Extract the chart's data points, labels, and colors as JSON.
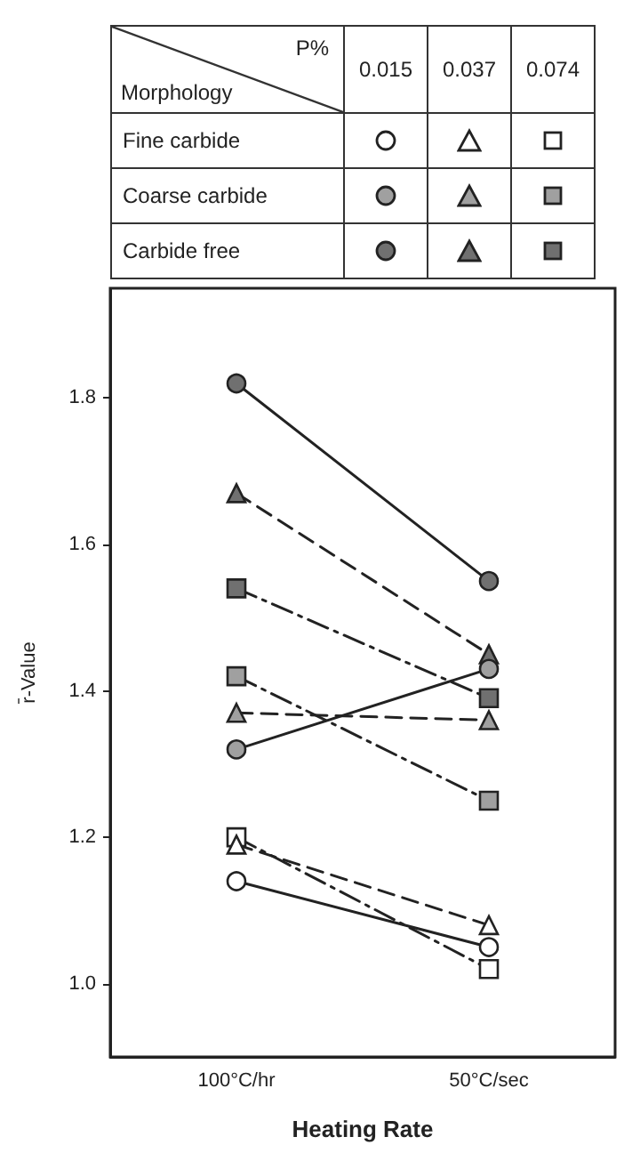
{
  "chart_data": {
    "type": "line",
    "xlabel": "Heating Rate",
    "ylabel": "r̄-Value",
    "categories": [
      "100°C/hr",
      "50°C/sec"
    ],
    "ylim": [
      0.9,
      1.95
    ],
    "yticks": [
      {
        "value": 1.0,
        "label": "1.0"
      },
      {
        "value": 1.2,
        "label": "1.2"
      },
      {
        "value": 1.4,
        "label": "1.4"
      },
      {
        "value": 1.6,
        "label": "1.6"
      },
      {
        "value": 1.8,
        "label": "1.8"
      }
    ],
    "annotations": [
      "P%",
      "Morphology",
      "0.015",
      "0.037",
      "0.074",
      "Fine carbide",
      "Coarse carbide",
      "Carbide free"
    ],
    "series": [
      {
        "color": "#ffffff",
        "marker": "circle",
        "line_style": "solid",
        "values": [
          1.14,
          1.05
        ]
      },
      {
        "color": "#ffffff",
        "marker": "triangle",
        "line_style": "dashed",
        "values": [
          1.19,
          1.08
        ]
      },
      {
        "color": "#ffffff",
        "marker": "square",
        "line_style": "dashdot",
        "values": [
          1.2,
          1.02
        ]
      },
      {
        "color": "#a0a0a0",
        "marker": "circle",
        "line_style": "solid",
        "values": [
          1.32,
          1.43
        ]
      },
      {
        "color": "#a0a0a0",
        "marker": "triangle",
        "line_style": "dashed",
        "values": [
          1.37,
          1.36
        ]
      },
      {
        "color": "#a0a0a0",
        "marker": "square",
        "line_style": "dashdot",
        "values": [
          1.42,
          1.25
        ]
      },
      {
        "color": "#707070",
        "marker": "circle",
        "line_style": "solid",
        "values": [
          1.82,
          1.55
        ]
      },
      {
        "color": "#707070",
        "marker": "triangle",
        "line_style": "dashed",
        "values": [
          1.67,
          1.45
        ]
      },
      {
        "color": "#707070",
        "marker": "square",
        "line_style": "dashdot",
        "values": [
          1.54,
          1.39
        ]
      }
    ]
  }
}
